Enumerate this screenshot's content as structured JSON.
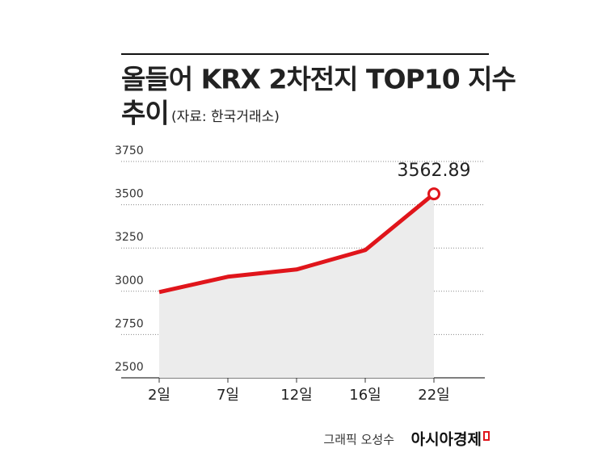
{
  "chart_data": {
    "type": "line",
    "title": [
      "올들어 KRX 2차전지 TOP10 지수",
      "추이"
    ],
    "subtitle": "(자료: 한국거래소)",
    "categories": [
      "2일",
      "7일",
      "12일",
      "16일",
      "22일"
    ],
    "values": [
      2995,
      3084,
      3126,
      3238,
      3562.89
    ],
    "color": "#e0151b",
    "area_color": "#ececec",
    "ylim": [
      2500,
      3750
    ],
    "yticks": [
      2500,
      2750,
      3000,
      3250,
      3500,
      3750
    ],
    "grid": true,
    "credit": "그래픽 오성수",
    "publisher": "아시아경제"
  }
}
